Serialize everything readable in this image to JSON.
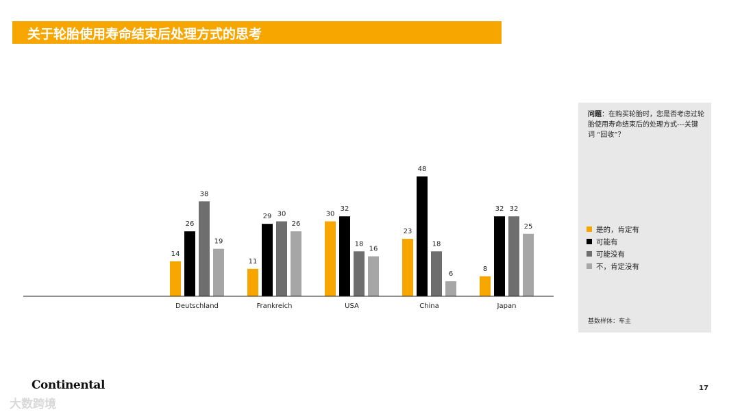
{
  "header": {
    "title": "关于轮胎使用寿命结束后处理方式的思考"
  },
  "side_panel": {
    "question_label": "问题",
    "question_text": "：在购买轮胎时，您是否考虑过轮胎使用寿命结束后的处理方式---关键词 “回收”？",
    "base_note": "基数样体：车主"
  },
  "footer": {
    "logo_text": "Continental",
    "page_number": "17",
    "watermark_text": "大数跨境"
  },
  "chart_data": {
    "type": "bar",
    "categories": [
      "Deutschland",
      "Frankreich",
      "USA",
      "China",
      "Japan"
    ],
    "series": [
      {
        "name": "是的，肯定有",
        "color": "#f7a600",
        "values": [
          14,
          11,
          30,
          23,
          8
        ]
      },
      {
        "name": "可能有",
        "color": "#000000",
        "values": [
          26,
          29,
          32,
          48,
          32
        ]
      },
      {
        "name": "可能没有",
        "color": "#6e6e6e",
        "values": [
          38,
          30,
          18,
          18,
          32
        ]
      },
      {
        "name": "不，肯定没有",
        "color": "#a6a6a6",
        "values": [
          19,
          26,
          16,
          6,
          25
        ]
      }
    ],
    "ylim": [
      0,
      50
    ],
    "legend_position": "right",
    "grid": false
  }
}
